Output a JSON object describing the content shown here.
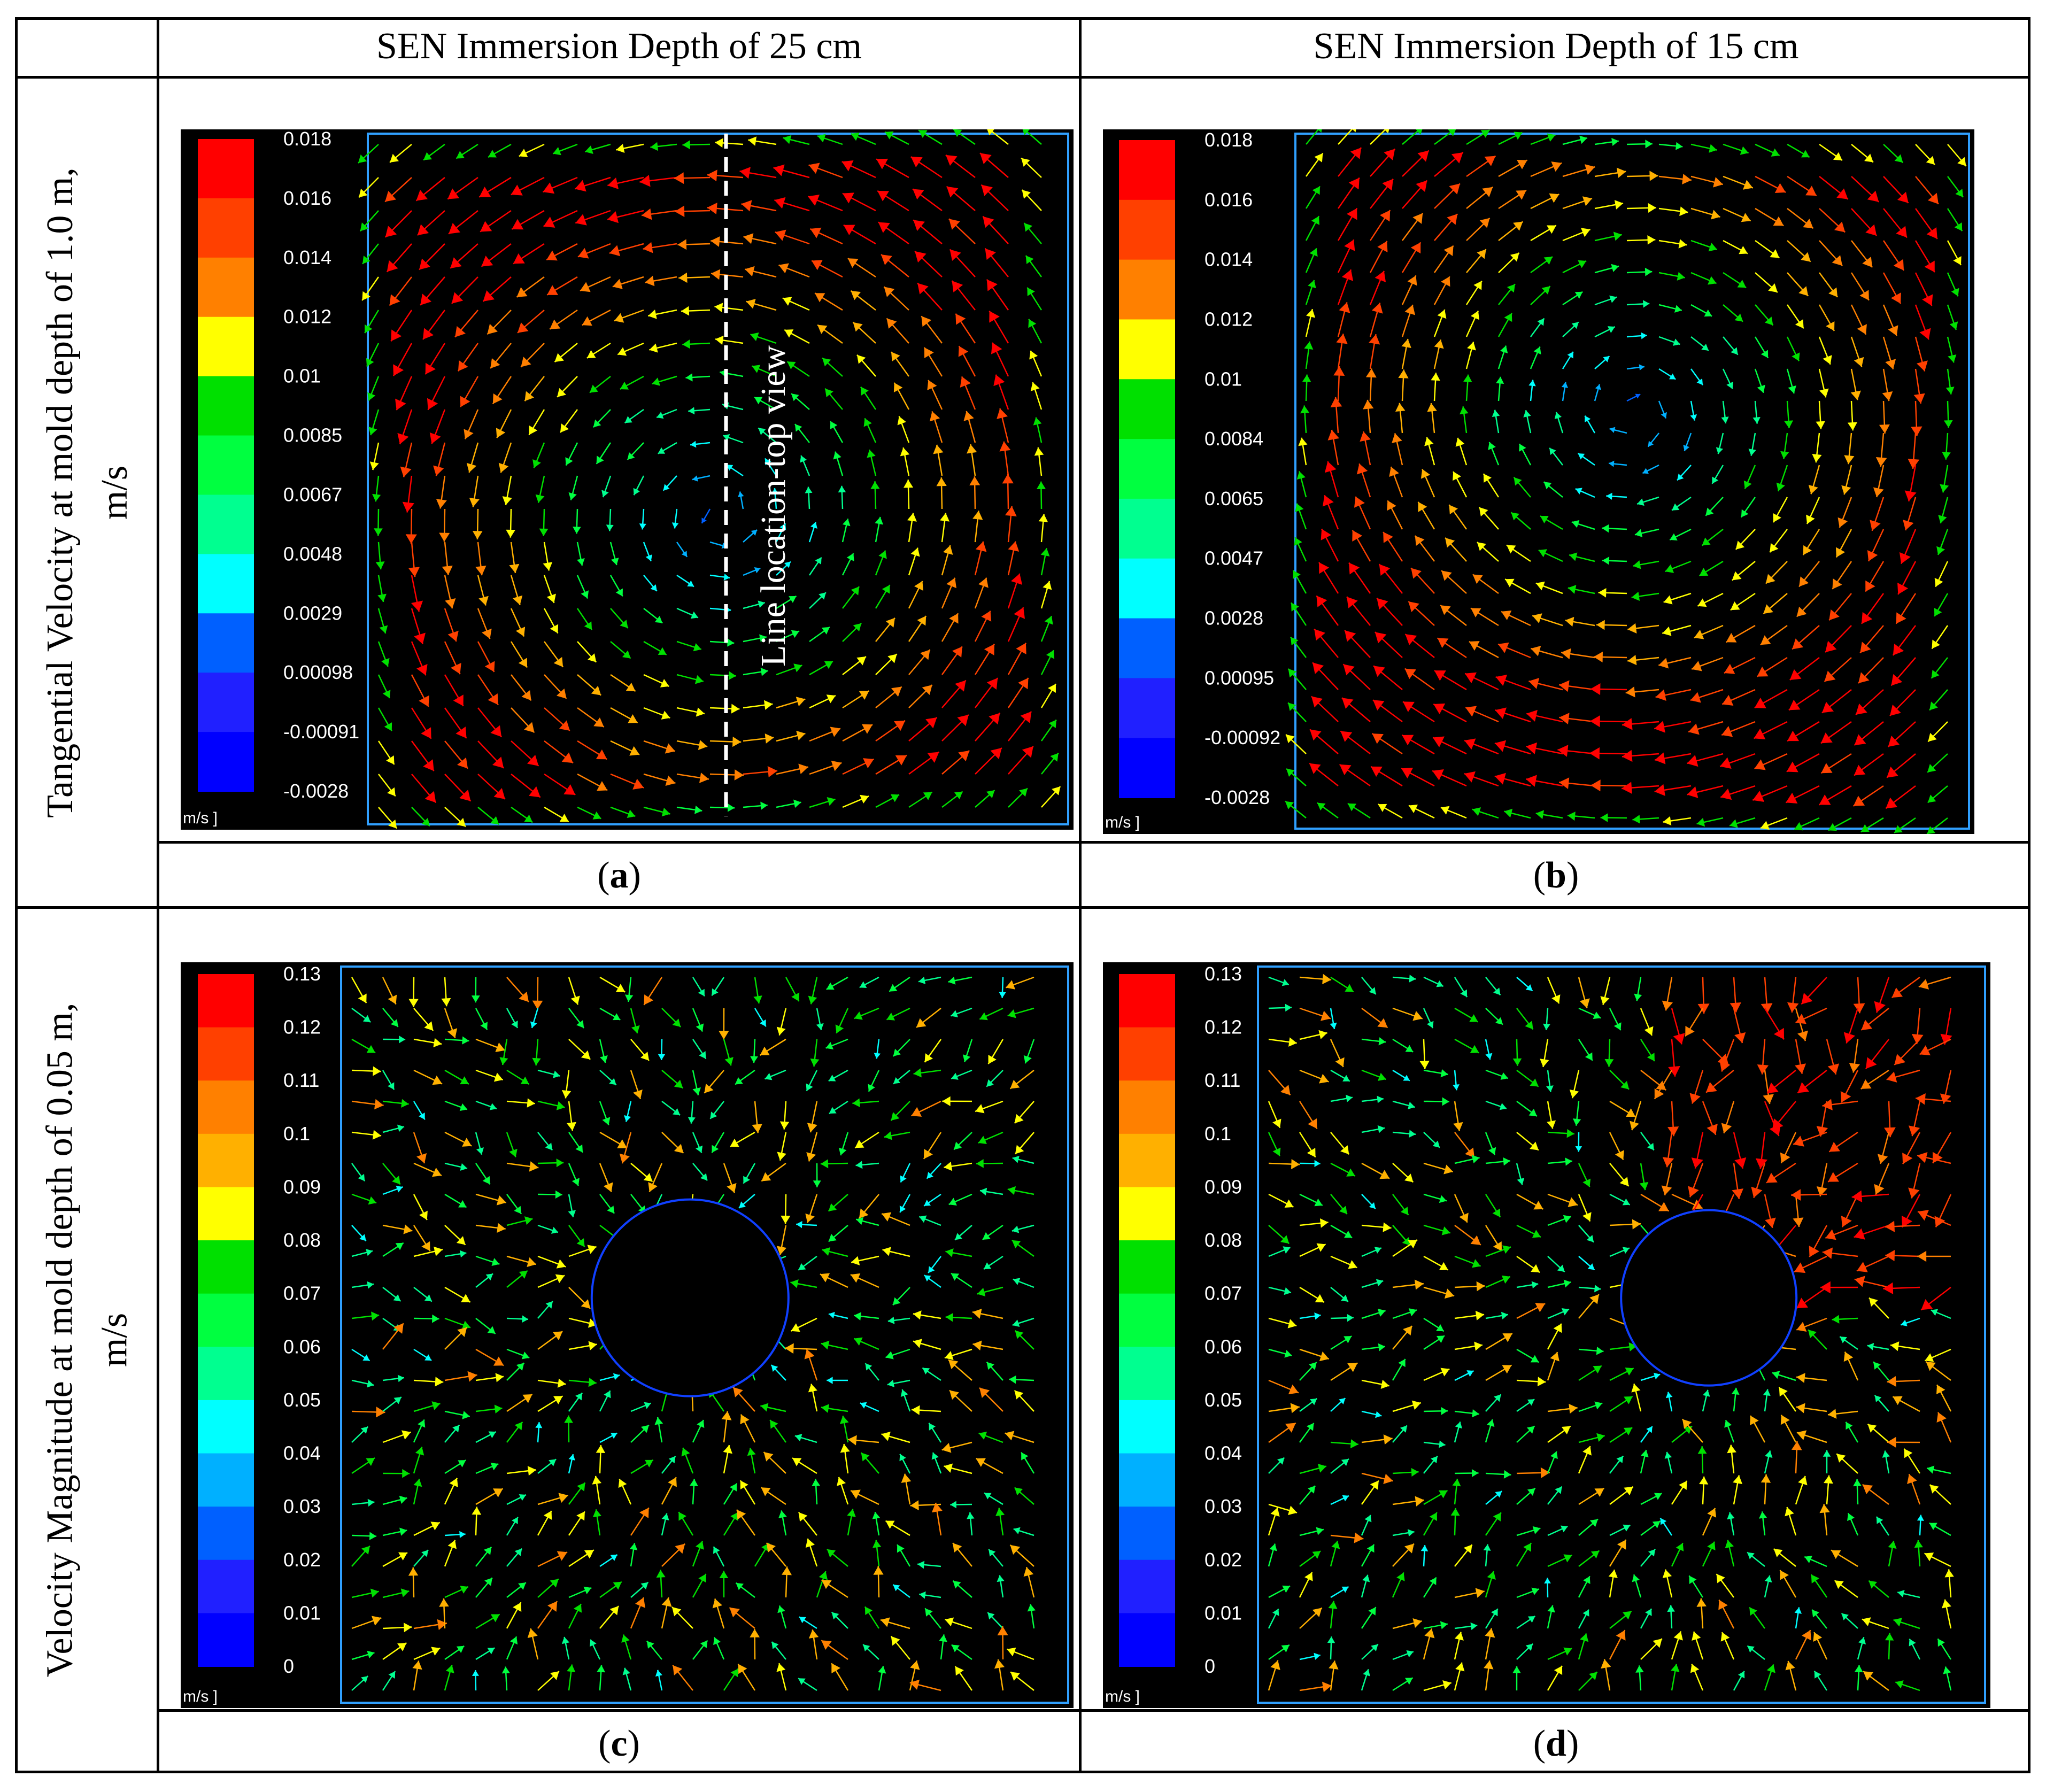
{
  "columns": [
    "",
    "SEN Immersion Depth of 25 cm",
    "SEN Immersion Depth of 15 cm"
  ],
  "rows": [
    {
      "label_line1": "Tangential Velocity at mold depth of 1.0 m,",
      "label_line2": "m/s"
    },
    {
      "label_line1": "Velocity Magnitude at mold depth of 0.05 m,",
      "label_line2": "m/s"
    }
  ],
  "panels": {
    "a": {
      "caption_open": "(",
      "caption_letter": "a",
      "caption_close": ")",
      "unit": "m/s ]",
      "colorbar": [
        "0.018",
        "0.016",
        "0.014",
        "0.012",
        "0.01",
        "0.0085",
        "0.0067",
        "0.0048",
        "0.0029",
        "0.00098",
        "-0.00091",
        "-0.0028"
      ],
      "annotation": "Line location-top view"
    },
    "b": {
      "caption_open": "(",
      "caption_letter": "b",
      "caption_close": ")",
      "unit": "m/s ]",
      "colorbar": [
        "0.018",
        "0.016",
        "0.014",
        "0.012",
        "0.01",
        "0.0084",
        "0.0065",
        "0.0047",
        "0.0028",
        "0.00095",
        "-0.00092",
        "-0.0028"
      ]
    },
    "c": {
      "caption_open": "(",
      "caption_letter": "c",
      "caption_close": ")",
      "unit": "m/s ]",
      "colorbar": [
        "0.13",
        "0.12",
        "0.11",
        "0.1",
        "0.09",
        "0.08",
        "0.07",
        "0.06",
        "0.05",
        "0.04",
        "0.03",
        "0.02",
        "0.01",
        "0"
      ]
    },
    "d": {
      "caption_open": "(",
      "caption_letter": "d",
      "caption_close": ")",
      "unit": "m/s ]",
      "colorbar": [
        "0.13",
        "0.12",
        "0.11",
        "0.1",
        "0.09",
        "0.08",
        "0.07",
        "0.06",
        "0.05",
        "0.04",
        "0.03",
        "0.02",
        "0.01",
        "0"
      ]
    }
  },
  "colormap": [
    "#ff0000",
    "#ff4000",
    "#ff8000",
    "#ffb000",
    "#ffff00",
    "#00e000",
    "#00ff40",
    "#00ff90",
    "#00ffff",
    "#00b0ff",
    "#0060ff",
    "#2020ff",
    "#0000ff"
  ]
}
